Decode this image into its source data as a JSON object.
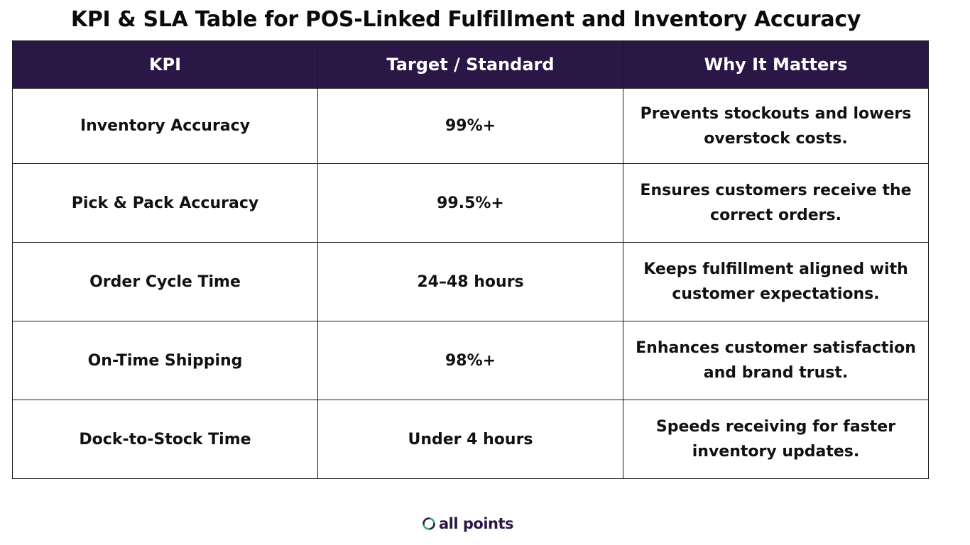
{
  "title": "KPI & SLA Table for POS-Linked Fulfillment and Inventory Accuracy",
  "table": {
    "headers": [
      "KPI",
      "Target / Standard",
      "Why It Matters"
    ],
    "rows": [
      [
        "Inventory Accuracy",
        "99%+",
        "Prevents stockouts and lowers overstock costs."
      ],
      [
        "Pick & Pack Accuracy",
        "99.5%+",
        "Ensures customers receive the correct orders."
      ],
      [
        "Order Cycle Time",
        "24–48 hours",
        "Keeps fulfillment aligned with customer expectations."
      ],
      [
        "On-Time Shipping",
        "98%+",
        "Enhances customer satisfaction and brand trust."
      ],
      [
        "Dock-to-Stock Time",
        "Under 4 hours",
        "Speeds receiving for faster inventory updates."
      ]
    ]
  },
  "logo": {
    "text": "all points",
    "icon": "circular-arrows-icon"
  },
  "colors": {
    "header_background": "#2a1746",
    "header_text": "#ffffff",
    "logo_green": "#3aa88a",
    "logo_purple": "#2a1746"
  }
}
